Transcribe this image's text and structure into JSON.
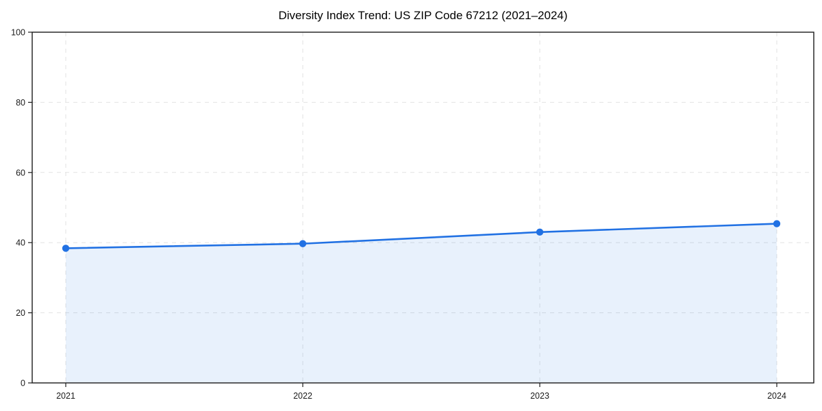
{
  "title": "Diversity Index Trend: US ZIP Code 67212 (2021–2024)",
  "chart_data": {
    "type": "line",
    "title": "Diversity Index Trend: US ZIP Code 67212 (2021–2024)",
    "x": [
      2021,
      2022,
      2023,
      2024
    ],
    "series": [
      {
        "name": "Diversity Index",
        "values": [
          38.4,
          39.7,
          43.0,
          45.4
        ]
      }
    ],
    "xlabel": "",
    "ylabel": "",
    "ylim": [
      0,
      100
    ],
    "yticks": [
      0,
      20,
      40,
      60,
      80,
      100
    ],
    "xticklabels": [
      "2021",
      "2022",
      "2023",
      "2024"
    ],
    "yticklabels": [
      "0",
      "20",
      "40",
      "60",
      "80",
      "100"
    ],
    "grid": true,
    "grid_style": "dashed",
    "legend": false,
    "area": true,
    "colors": {
      "line": "#2171e3",
      "marker": "#2171e3",
      "area_fill": "rgba(33,113,227,0.10)",
      "grid": "#e2e2e2",
      "frame": "#1a1a1a",
      "tick_label": "#1a1a1a",
      "background": "#ffffff"
    }
  }
}
